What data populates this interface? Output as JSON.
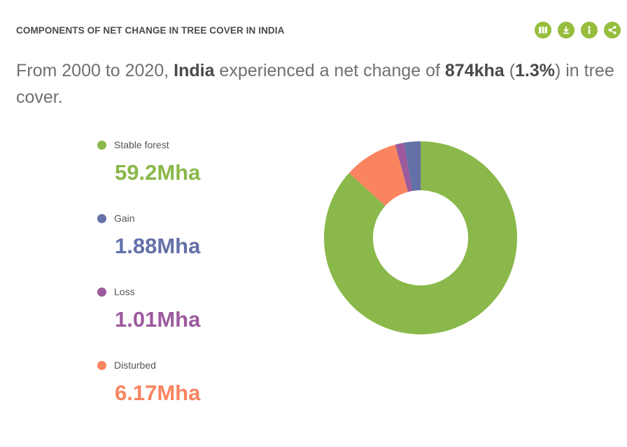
{
  "widget": {
    "title": "COMPONENTS OF NET CHANGE IN TREE COVER IN INDIA",
    "toolbar": [
      {
        "name": "map-button",
        "icon": "map-icon"
      },
      {
        "name": "download-button",
        "icon": "download-icon"
      },
      {
        "name": "info-button",
        "icon": "info-icon"
      },
      {
        "name": "share-button",
        "icon": "share-icon"
      }
    ],
    "sentence": {
      "p1": "From 2000 to 2020, ",
      "country": "India",
      "p2": " experienced a net change of ",
      "net": "874kha",
      "p3": " (",
      "pct": "1.3%",
      "p4": ") in tree cover."
    }
  },
  "chart_data": {
    "type": "pie",
    "donut": true,
    "unit": "Mha",
    "categories": [
      "Stable forest",
      "Gain",
      "Loss",
      "Disturbed"
    ],
    "values": [
      59.2,
      1.88,
      1.01,
      6.17
    ],
    "value_labels": [
      "59.2Mha",
      "1.88Mha",
      "1.01Mha",
      "6.17Mha"
    ],
    "colors": [
      "#8ab84a",
      "#6470a8",
      "#9d5a9d",
      "#fa8460"
    ],
    "legend_position": "left"
  }
}
